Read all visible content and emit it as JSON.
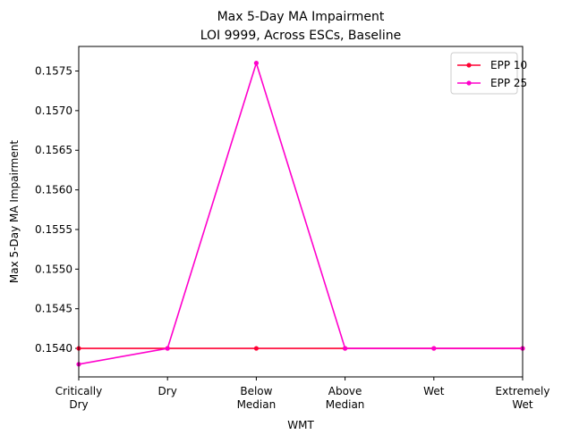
{
  "chart_data": {
    "type": "line",
    "title": "Max 5-Day MA Impairment",
    "subtitle": "LOI 9999, Across ESCs, Baseline",
    "xlabel": "WMT",
    "ylabel": "Max 5-Day MA Impairment",
    "categories": [
      [
        "Critically",
        "Dry"
      ],
      [
        "Dry"
      ],
      [
        "Below",
        "Median"
      ],
      [
        "Above",
        "Median"
      ],
      [
        "Wet"
      ],
      [
        "Extremely",
        "Wet"
      ]
    ],
    "ylim": [
      0.15364,
      0.15781
    ],
    "yticks": [
      {
        "value": 0.154,
        "label": "0.1540"
      },
      {
        "value": 0.1545,
        "label": "0.1545"
      },
      {
        "value": 0.155,
        "label": "0.1550"
      },
      {
        "value": 0.1555,
        "label": "0.1555"
      },
      {
        "value": 0.156,
        "label": "0.1560"
      },
      {
        "value": 0.1565,
        "label": "0.1565"
      },
      {
        "value": 0.157,
        "label": "0.1570"
      },
      {
        "value": 0.1575,
        "label": "0.1575"
      }
    ],
    "grid": false,
    "legend_position": "top-right",
    "series": [
      {
        "name": "EPP 10",
        "color": "#ff0033",
        "values": [
          0.154,
          0.154,
          0.154,
          0.154,
          0.154,
          0.154
        ]
      },
      {
        "name": "EPP 25",
        "color": "#ff00cc",
        "values": [
          0.1538,
          0.154,
          0.1576,
          0.154,
          0.154,
          0.154
        ]
      }
    ]
  }
}
